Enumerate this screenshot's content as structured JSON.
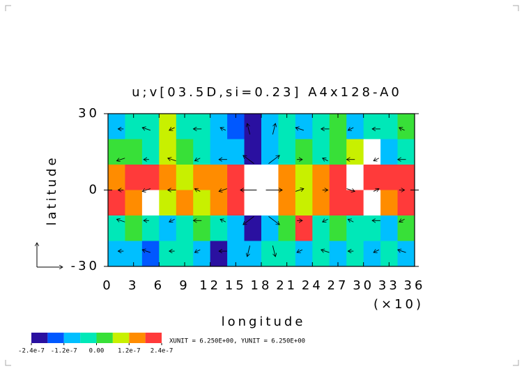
{
  "chart_data": {
    "type": "shaded-vector",
    "title": "u;v[03.5D,si=0.23] A4x128-A0",
    "x_label": "longitude",
    "x_multiplier": "(×10)",
    "y_label": "latitude",
    "xlim": [
      0,
      36
    ],
    "xticks": [
      0,
      3,
      6,
      9,
      12,
      15,
      18,
      21,
      24,
      27,
      30,
      33,
      36
    ],
    "ylim": [
      -30,
      30
    ],
    "yticks": [
      -30,
      0,
      30
    ],
    "field": {
      "values": [
        [
          -8e-08,
          -5e-08,
          -3e-08,
          8e-08,
          -6e-08,
          -5e-08,
          -1e-07,
          -1.5e-07,
          -2e-07,
          -1e-07,
          -3e-08,
          -8e-08,
          -5e-08,
          5e-08,
          -8e-08,
          -6e-08,
          -3e-08,
          3e-08
        ],
        [
          3e-08,
          5e-08,
          -5e-08,
          1e-07,
          2e-08,
          -3e-08,
          -8e-08,
          -1.2e-07,
          -2.6e-07,
          -1e-07,
          -5e-08,
          3e-08,
          -5e-08,
          4e-08,
          1e-07,
          2.6e-07,
          -8e-08,
          -4e-08
        ],
        [
          1.5e-07,
          1.8e-07,
          2e-07,
          1.5e-07,
          1e-07,
          1.2e-07,
          1.5e-07,
          1.8e-07,
          2.6e-07,
          2.8e-07,
          1.2e-07,
          1e-07,
          1.5e-07,
          2e-07,
          2.6e-07,
          2e-07,
          1.8e-07,
          2.2e-07
        ],
        [
          2e-07,
          1.2e-07,
          2.6e-07,
          1e-07,
          1.5e-07,
          1e-07,
          1.2e-07,
          1.8e-07,
          2.8e-07,
          2.6e-07,
          1.5e-07,
          8e-08,
          1.2e-07,
          1.8e-07,
          2e-07,
          2.6e-07,
          1.5e-07,
          1.8e-07
        ],
        [
          -3e-08,
          2e-08,
          -5e-08,
          -8e-08,
          -3e-08,
          3e-08,
          -5e-08,
          -1e-07,
          -2.6e-07,
          -8e-08,
          5e-08,
          1.8e-07,
          -3e-08,
          3e-08,
          -5e-08,
          -3e-08,
          -8e-08,
          2e-08
        ],
        [
          -8e-08,
          -1e-07,
          -1.5e-07,
          -6e-08,
          -5e-08,
          -1e-07,
          -2e-07,
          -1.2e-07,
          -8e-08,
          -6e-08,
          -3e-08,
          -1e-07,
          -5e-08,
          -8e-08,
          -6e-08,
          -1.2e-07,
          -5e-08,
          -8e-08
        ]
      ],
      "over_color": "#ffffff"
    },
    "vectors": {
      "u": [
        [
          -2,
          -3,
          -2,
          -3,
          -2,
          -1,
          1,
          -3,
          -3,
          -2,
          -3,
          -2
        ],
        [
          -3,
          -2,
          -3,
          -2,
          -3,
          -4,
          4,
          2,
          -2,
          -3,
          -2,
          -3
        ],
        [
          -2,
          -3,
          -3,
          -2,
          -3,
          -6,
          6,
          3,
          2,
          3,
          2,
          2
        ],
        [
          -3,
          -2,
          -2,
          -3,
          -2,
          -4,
          4,
          2,
          -2,
          -2,
          -3,
          -2
        ],
        [
          -2,
          -3,
          -2,
          -2,
          -3,
          -1,
          1,
          -2,
          -3,
          -2,
          -2,
          -3
        ]
      ],
      "v": [
        [
          0,
          1,
          -1,
          0,
          1,
          4,
          4,
          1,
          0,
          -1,
          0,
          1
        ],
        [
          -1,
          0,
          1,
          -1,
          0,
          3,
          3,
          0,
          1,
          0,
          -1,
          0
        ],
        [
          0,
          -1,
          0,
          1,
          -1,
          0,
          0,
          1,
          0,
          -1,
          1,
          0
        ],
        [
          1,
          0,
          -1,
          0,
          1,
          -3,
          -3,
          0,
          -1,
          1,
          0,
          -1
        ],
        [
          0,
          1,
          0,
          -1,
          0,
          -4,
          -4,
          -1,
          1,
          0,
          -1,
          1
        ]
      ],
      "unit_text": "XUNIT = 6.250E+00, YUNIT = 6.250E+00"
    },
    "colorbar": {
      "levels": [
        -2.4e-07,
        -1.8e-07,
        -1.2e-07,
        -6e-08,
        0,
        6e-08,
        1.2e-07,
        1.8e-07,
        2.4e-07
      ],
      "colors": [
        "#2a10a0",
        "#0058ff",
        "#00bfff",
        "#00e8b8",
        "#38e038",
        "#c8f000",
        "#ff8c00",
        "#ff3a3a"
      ],
      "ticks": [
        {
          "value": -2.4e-07,
          "label": "-2.4e-7"
        },
        {
          "value": -1.2e-07,
          "label": "-1.2e-7"
        },
        {
          "value": 0,
          "label": "0.00"
        },
        {
          "value": 1.2e-07,
          "label": "1.2e-7"
        },
        {
          "value": 2.4e-07,
          "label": "2.4e-7"
        }
      ]
    }
  }
}
